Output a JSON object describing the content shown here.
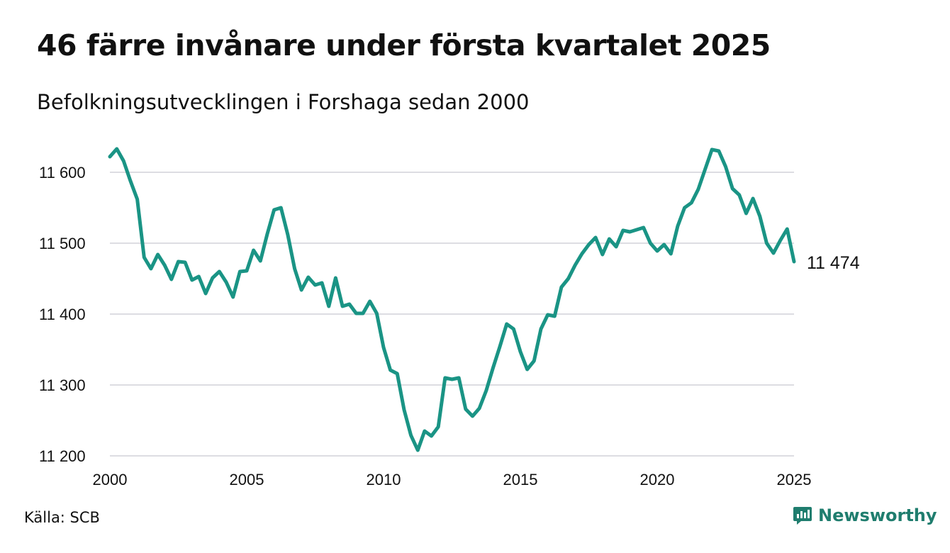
{
  "title": "46 färre invånare under första kvartalet 2025",
  "subtitle": "Befolkningsutvecklingen i Forshaga sedan 2000",
  "source": "Källa: SCB",
  "brand": {
    "name": "Newsworthy",
    "icon": "newsworthy-logo-icon"
  },
  "colors": {
    "line": "#1a9485",
    "grid": "#dddde2",
    "brand": "#1f7d6e"
  },
  "chart_data": {
    "type": "line",
    "title": "46 färre invånare under första kvartalet 2025",
    "subtitle": "Befolkningsutvecklingen i Forshaga sedan 2000",
    "xlabel": "",
    "ylabel": "",
    "xlim": [
      2000,
      2025
    ],
    "ylim": [
      11200,
      11640
    ],
    "x_ticks": [
      2000,
      2005,
      2010,
      2015,
      2020,
      2025
    ],
    "x_tick_labels": [
      "2000",
      "2005",
      "2010",
      "2015",
      "2020",
      "2025"
    ],
    "y_ticks": [
      11200,
      11300,
      11400,
      11500,
      11600
    ],
    "y_tick_labels": [
      "11 200",
      "11 300",
      "11 400",
      "11 500",
      "11 600"
    ],
    "grid": true,
    "end_label": "11 474",
    "series": [
      {
        "x": [
          2000.0,
          2000.25,
          2000.5,
          2000.75,
          2001.0,
          2001.25,
          2001.5,
          2001.75,
          2002.0,
          2002.25,
          2002.5,
          2002.75,
          2003.0,
          2003.25,
          2003.5,
          2003.75,
          2004.0,
          2004.25,
          2004.5,
          2004.75,
          2005.0,
          2005.25,
          2005.5,
          2005.75,
          2006.0,
          2006.25,
          2006.5,
          2006.75,
          2007.0,
          2007.25,
          2007.5,
          2007.75,
          2008.0,
          2008.25,
          2008.5,
          2008.75,
          2009.0,
          2009.25,
          2009.5,
          2009.75,
          2010.0,
          2010.25,
          2010.5,
          2010.75,
          2011.0,
          2011.25,
          2011.5,
          2011.75,
          2012.0,
          2012.25,
          2012.5,
          2012.75,
          2013.0,
          2013.25,
          2013.5,
          2013.75,
          2014.0,
          2014.25,
          2014.5,
          2014.75,
          2015.0,
          2015.25,
          2015.5,
          2015.75,
          2016.0,
          2016.25,
          2016.5,
          2016.75,
          2017.0,
          2017.25,
          2017.5,
          2017.75,
          2018.0,
          2018.25,
          2018.5,
          2018.75,
          2019.0,
          2019.25,
          2019.5,
          2019.75,
          2020.0,
          2020.25,
          2020.5,
          2020.75,
          2021.0,
          2021.25,
          2021.5,
          2021.75,
          2022.0,
          2022.25,
          2022.5,
          2022.75,
          2023.0,
          2023.25,
          2023.5,
          2023.75,
          2024.0,
          2024.25,
          2024.5,
          2024.75,
          2025.0
        ],
        "values": [
          11622,
          11633,
          11616,
          11588,
          11562,
          11480,
          11464,
          11484,
          11469,
          11449,
          11474,
          11473,
          11448,
          11453,
          11429,
          11451,
          11460,
          11445,
          11424,
          11460,
          11461,
          11490,
          11475,
          11513,
          11547,
          11550,
          11512,
          11464,
          11434,
          11452,
          11441,
          11444,
          11411,
          11451,
          11411,
          11414,
          11401,
          11401,
          11418,
          11401,
          11353,
          11321,
          11316,
          11265,
          11229,
          11208,
          11235,
          11228,
          11241,
          11310,
          11308,
          11310,
          11266,
          11256,
          11267,
          11292,
          11324,
          11354,
          11386,
          11379,
          11347,
          11322,
          11334,
          11379,
          11399,
          11397,
          11438,
          11450,
          11469,
          11485,
          11498,
          11508,
          11484,
          11506,
          11495,
          11518,
          11516,
          11519,
          11522,
          11500,
          11489,
          11498,
          11485,
          11524,
          11550,
          11557,
          11576,
          11604,
          11632,
          11630,
          11608,
          11577,
          11568,
          11542,
          11563,
          11538,
          11500,
          11486,
          11504,
          11520,
          11474
        ]
      }
    ]
  }
}
